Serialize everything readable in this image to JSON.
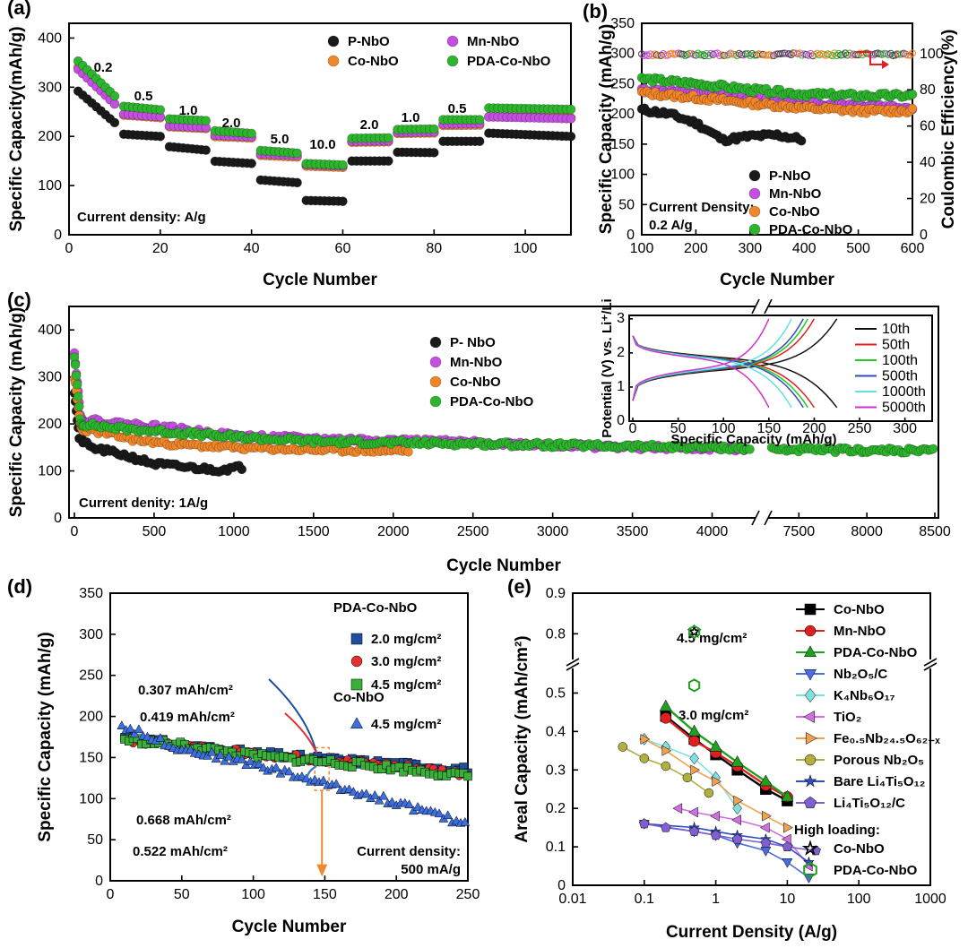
{
  "chart_data": [
    {
      "panel": "(a)",
      "type": "scatter",
      "xlabel": "Cycle Number",
      "ylabel": "Specific Capacity(mAh/g)",
      "xlim": [
        0,
        110
      ],
      "ylim": [
        0,
        430
      ],
      "xticks": [
        0,
        20,
        40,
        60,
        80,
        100
      ],
      "yticks": [
        0,
        100,
        200,
        300,
        400
      ],
      "annotation": "Current density: A/g",
      "rate_labels": [
        "0.2",
        "0.5",
        "1.0",
        "2.0",
        "5.0",
        "10.0",
        "2.0",
        "1.0",
        "0.5"
      ],
      "rate_steps": [
        {
          "from": 1,
          "to": 10
        },
        {
          "from": 11,
          "to": 20
        },
        {
          "from": 21,
          "to": 30
        },
        {
          "from": 31,
          "to": 40
        },
        {
          "from": 41,
          "to": 50
        },
        {
          "from": 51,
          "to": 60
        },
        {
          "from": 61,
          "to": 70
        },
        {
          "from": 71,
          "to": 80
        },
        {
          "from": 81,
          "to": 90
        },
        {
          "from": 91,
          "to": 110
        }
      ],
      "series": [
        {
          "name": "P-NbO",
          "color": "#1a1a1a",
          "step_values": [
            [
              300,
              228
            ],
            [
              205,
              200
            ],
            [
              180,
              172
            ],
            [
              150,
              145
            ],
            [
              112,
              106
            ],
            [
              70,
              68
            ],
            [
              150,
              150
            ],
            [
              168,
              167
            ],
            [
              190,
              190
            ],
            [
              207,
              200
            ]
          ]
        },
        {
          "name": "Mn-NbO",
          "color": "#c44ee0",
          "step_values": [
            [
              345,
              266
            ],
            [
              246,
              240
            ],
            [
              222,
              218
            ],
            [
              203,
              199
            ],
            [
              165,
              161
            ],
            [
              143,
              140
            ],
            [
              190,
              191
            ],
            [
              208,
              209
            ],
            [
              225,
              226
            ],
            [
              240,
              236
            ]
          ]
        },
        {
          "name": "Co-NbO",
          "color": "#f0862a",
          "step_values": [
            [
              350,
              266
            ],
            [
              244,
              238
            ],
            [
              220,
              216
            ],
            [
              200,
              197
            ],
            [
              162,
              158
            ],
            [
              140,
              137
            ],
            [
              188,
              189
            ],
            [
              206,
              207
            ],
            [
              222,
              223
            ],
            [
              240,
              238
            ]
          ]
        },
        {
          "name": "PDA-Co-NbO",
          "color": "#2db52d",
          "step_values": [
            [
              362,
              282
            ],
            [
              262,
              254
            ],
            [
              236,
              232
            ],
            [
              212,
              206
            ],
            [
              172,
              166
            ],
            [
              145,
              142
            ],
            [
              196,
              197
            ],
            [
              214,
              215
            ],
            [
              234,
              234
            ],
            [
              258,
              255
            ]
          ]
        }
      ]
    },
    {
      "panel": "(b)",
      "type": "scatter",
      "xlabel": "Cycle Number",
      "ylabel": "Specific Capacity (mAh/g)",
      "ylabel_right": "Coulombic Efficiency(%)",
      "xlim": [
        100,
        600
      ],
      "ylim": [
        0,
        350
      ],
      "ylim_right": [
        0,
        116.7
      ],
      "xticks": [
        100,
        200,
        300,
        400,
        500,
        600
      ],
      "yticks": [
        0,
        50,
        100,
        150,
        200,
        250,
        300,
        350
      ],
      "yticks_right": [
        0,
        20,
        40,
        60,
        80,
        100
      ],
      "annotation": "Current Density:\n0.2 A/g",
      "series": [
        {
          "name": "P-NbO",
          "color": "#1a1a1a",
          "x": [
            100,
            150,
            200,
            250,
            300,
            350,
            395
          ],
          "y": [
            207,
            200,
            185,
            157,
            163,
            165,
            158
          ]
        },
        {
          "name": "Mn-NbO",
          "color": "#c44ee0",
          "x": [
            100,
            200,
            300,
            400,
            500,
            600
          ],
          "y": [
            240,
            235,
            225,
            218,
            215,
            210
          ]
        },
        {
          "name": "Co-NbO",
          "color": "#f0862a",
          "x": [
            100,
            200,
            300,
            400,
            500,
            600
          ],
          "y": [
            235,
            227,
            218,
            210,
            205,
            205
          ]
        },
        {
          "name": "PDA-Co-NbO",
          "color": "#2db52d",
          "x": [
            100,
            200,
            300,
            400,
            500,
            600
          ],
          "y": [
            258,
            250,
            240,
            233,
            230,
            230
          ]
        }
      ],
      "coulombic_efficiency": {
        "x": [
          100,
          600
        ],
        "y": [
          99.5,
          99.5
        ]
      }
    },
    {
      "panel": "(c)",
      "type": "scatter",
      "xlabel": "Cycle Number",
      "ylabel": "Specific Capacity (mAh/g)",
      "xlim_segments": [
        [
          0,
          4250
        ],
        [
          7300,
          8500
        ]
      ],
      "ylim": [
        0,
        450
      ],
      "xticks": [
        0,
        500,
        1000,
        1500,
        2000,
        2500,
        3000,
        3500,
        4000,
        7500,
        8000,
        8500
      ],
      "yticks": [
        0,
        100,
        200,
        300,
        400
      ],
      "annotation": "Current denity: 1A/g",
      "series": [
        {
          "name": "P- NbO",
          "color": "#1a1a1a",
          "x": [
            0,
            30,
            100,
            300,
            500,
            700,
            900,
            1050
          ],
          "y": [
            270,
            170,
            150,
            135,
            115,
            108,
            102,
            108
          ]
        },
        {
          "name": "Mn-NbO",
          "color": "#c44ee0",
          "x": [
            0,
            40,
            200,
            500,
            1000,
            1500,
            2000,
            2500,
            3000,
            3500,
            4000,
            4200
          ],
          "y": [
            355,
            210,
            203,
            195,
            175,
            168,
            165,
            160,
            155,
            150,
            148,
            146
          ]
        },
        {
          "name": "Co-NbO",
          "color": "#f0862a",
          "x": [
            0,
            40,
            200,
            400,
            700,
            1000,
            1500,
            2100
          ],
          "y": [
            300,
            190,
            180,
            165,
            155,
            150,
            145,
            143
          ]
        },
        {
          "name": "PDA-Co-NbO",
          "color": "#2db52d",
          "x": [
            0,
            40,
            300,
            700,
            1000,
            1500,
            2000,
            2500,
            3000,
            3500,
            4000,
            4200,
            7300,
            7800,
            8200,
            8500
          ],
          "y": [
            345,
            200,
            190,
            180,
            172,
            163,
            160,
            158,
            155,
            152,
            150,
            148,
            146,
            144,
            143,
            143
          ]
        }
      ],
      "inset": {
        "type": "line",
        "xlabel": "Specific Capacity (mAh/g)",
        "ylabel": "Potential (V) vs. Li⁺/Li",
        "xlim": [
          0,
          330
        ],
        "ylim": [
          0,
          3.1
        ],
        "xticks": [
          0,
          50,
          100,
          150,
          200,
          250,
          300
        ],
        "yticks": [
          0,
          1,
          2,
          3
        ],
        "series": [
          {
            "name": "10th",
            "color": "#111111",
            "capacity": 225
          },
          {
            "name": "50th",
            "color": "#e02020",
            "capacity": 200
          },
          {
            "name": "100th",
            "color": "#22cc22",
            "capacity": 193
          },
          {
            "name": "500th",
            "color": "#2f4fb8",
            "capacity": 188
          },
          {
            "name": "1000th",
            "color": "#66e0e0",
            "capacity": 175
          },
          {
            "name": "5000th",
            "color": "#cc33cc",
            "capacity": 150
          }
        ]
      }
    },
    {
      "panel": "(d)",
      "type": "scatter",
      "xlabel": "Cycle Number",
      "ylabel": "Specific Capacity (mAh/g)",
      "xlim": [
        0,
        250
      ],
      "ylim": [
        0,
        350
      ],
      "xticks": [
        0,
        50,
        100,
        150,
        200,
        250
      ],
      "yticks": [
        0,
        50,
        100,
        150,
        200,
        250,
        300,
        350
      ],
      "legend_groups": [
        "PDA-Co-NbO",
        "Co-NbO"
      ],
      "annotation": "Current density:\n500 mA/g",
      "callouts": [
        "0.307 mAh/cm²",
        "0.419 mAh/cm²",
        "0.668 mAh/cm²",
        "0.522 mAh/cm²"
      ],
      "series": [
        {
          "name": "2.0 mg/cm²",
          "group": "PDA-Co-NbO",
          "color": "#1f4e9e",
          "marker": "square",
          "x": [
            10,
            50,
            100,
            150,
            200,
            250
          ],
          "y": [
            175,
            165,
            155,
            148,
            142,
            135
          ]
        },
        {
          "name": "3.0 mg/cm²",
          "group": "PDA-Co-NbO",
          "color": "#e53030",
          "marker": "circle",
          "x": [
            10,
            50,
            100,
            150,
            200,
            250
          ],
          "y": [
            173,
            163,
            155,
            147,
            140,
            130
          ]
        },
        {
          "name": "4.5 mg/cm²",
          "group": "PDA-Co-NbO",
          "color": "#3ab03a",
          "marker": "square",
          "x": [
            10,
            50,
            100,
            150,
            200,
            250
          ],
          "y": [
            172,
            165,
            152,
            145,
            137,
            127
          ]
        },
        {
          "name": "4.5 mg/cm²",
          "group": "Co-NbO",
          "color": "#3d6ee0",
          "marker": "triangle",
          "x": [
            8,
            50,
            100,
            150,
            200,
            250
          ],
          "y": [
            188,
            160,
            142,
            118,
            95,
            68
          ]
        }
      ]
    },
    {
      "panel": "(e)",
      "type": "line",
      "xlabel": "Current Density (A/g)",
      "ylabel": "Areal Capacity (mAh/cm²)",
      "xscale": "log",
      "xlim": [
        0.01,
        1000
      ],
      "ylim": [
        0,
        0.9
      ],
      "xticks": [
        "0.01",
        "0.1",
        "1",
        "10",
        "100",
        "1000"
      ],
      "yticks": [
        0.0,
        0.1,
        0.2,
        0.3,
        0.4,
        0.5,
        0.8,
        0.9
      ],
      "annotations": [
        "4.5 mg/cm²",
        "3.0 mg/cm²"
      ],
      "legend_note": "High loading:",
      "series": [
        {
          "name": "Co-NbO",
          "color": "#000000",
          "marker": "square",
          "x": [
            0.2,
            0.5,
            1,
            2,
            5,
            10
          ],
          "y": [
            0.44,
            0.38,
            0.34,
            0.3,
            0.25,
            0.22
          ]
        },
        {
          "name": "Mn-NbO",
          "color": "#e02020",
          "marker": "circle",
          "x": [
            0.2,
            0.5,
            1,
            2,
            5,
            10
          ],
          "y": [
            0.435,
            0.375,
            0.345,
            0.31,
            0.26,
            0.23
          ]
        },
        {
          "name": "PDA-Co-NbO",
          "color": "#20a020",
          "marker": "triangle",
          "x": [
            0.2,
            0.5,
            1,
            2,
            5,
            10
          ],
          "y": [
            0.465,
            0.4,
            0.36,
            0.32,
            0.27,
            0.23
          ]
        },
        {
          "name": "Nb₂O₅/C",
          "color": "#4a6ee0",
          "marker": "tri-down",
          "x": [
            0.1,
            0.5,
            1,
            2,
            5,
            10,
            20
          ],
          "y": [
            0.16,
            0.14,
            0.13,
            0.11,
            0.09,
            0.06,
            0.02
          ]
        },
        {
          "name": "K₄Nb₆O₁₇",
          "color": "#80e0e0",
          "marker": "diamond",
          "x": [
            0.1,
            0.2,
            0.5,
            1,
            2
          ],
          "y": [
            0.38,
            0.36,
            0.33,
            0.28,
            0.2
          ]
        },
        {
          "name": "TiO₂",
          "color": "#d070e0",
          "marker": "tri-left",
          "x": [
            0.3,
            0.5,
            1,
            2,
            5,
            10,
            20
          ],
          "y": [
            0.2,
            0.19,
            0.18,
            0.17,
            0.15,
            0.12,
            0.05
          ]
        },
        {
          "name": "Fe₀.₅Nb₂₄.₅O₆₂₋ₓ",
          "color": "#f0a050",
          "marker": "tri-right",
          "x": [
            0.1,
            0.2,
            0.5,
            1,
            2,
            5,
            10
          ],
          "y": [
            0.38,
            0.35,
            0.3,
            0.27,
            0.22,
            0.18,
            0.15
          ]
        },
        {
          "name": "Porous Nb₂O₅",
          "color": "#b0b040",
          "marker": "circle",
          "x": [
            0.05,
            0.1,
            0.2,
            0.4,
            0.8
          ],
          "y": [
            0.36,
            0.33,
            0.31,
            0.28,
            0.24
          ]
        },
        {
          "name": "Bare Li₄Ti₅O₁₂",
          "color": "#2f4fc0",
          "marker": "star",
          "x": [
            0.1,
            0.5,
            1,
            2,
            5,
            10,
            20
          ],
          "y": [
            0.16,
            0.15,
            0.14,
            0.13,
            0.12,
            0.1,
            0.06
          ]
        },
        {
          "name": "Li₄Ti₅O₁₂/C",
          "color": "#8060d0",
          "marker": "pentagon",
          "x": [
            0.1,
            0.2,
            0.5,
            1,
            2,
            5,
            10,
            25
          ],
          "y": [
            0.16,
            0.15,
            0.14,
            0.13,
            0.12,
            0.11,
            0.1,
            0.09
          ]
        },
        {
          "name": "Co-NbO",
          "color": "#000000",
          "marker": "open-star",
          "x": [
            0.5
          ],
          "y": [
            0.805
          ]
        },
        {
          "name": "PDA-Co-NbO",
          "color": "#20a020",
          "marker": "open-hexagon",
          "x": [
            0.5,
            0.5
          ],
          "y": [
            0.52,
            0.805
          ]
        }
      ]
    }
  ]
}
